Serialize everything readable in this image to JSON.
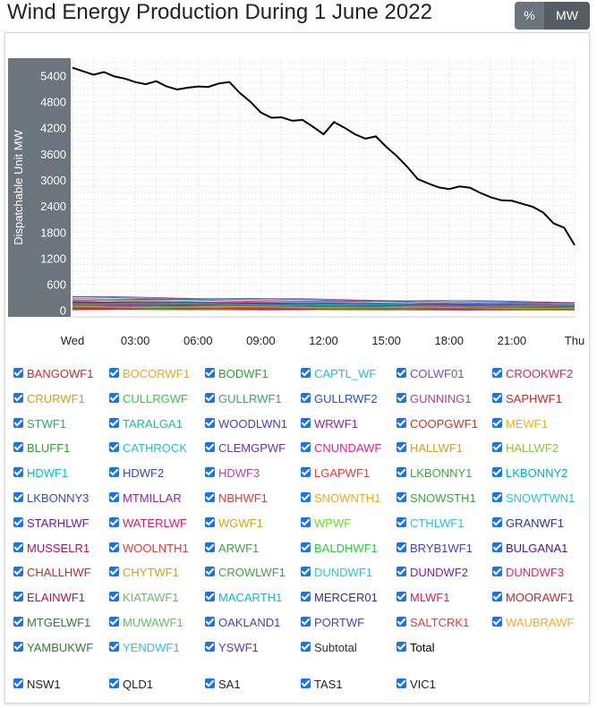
{
  "header": {
    "title": "Wind Energy Production During 1 June 2022"
  },
  "toolbar": {
    "percent_label": "%",
    "mw_label": "MW"
  },
  "colors": {
    "toggle_bg": "#6c757d",
    "checkbox": "#1a73e8",
    "total_line": "#000000"
  },
  "chart_data": {
    "type": "line",
    "title": "",
    "xlabel": "",
    "ylabel": "Dispatchable Unit MW",
    "x_ticks": [
      "Wed",
      "03:00",
      "06:00",
      "09:00",
      "12:00",
      "15:00",
      "18:00",
      "21:00",
      "Thu"
    ],
    "x_range_hours": [
      0,
      24
    ],
    "y_ticks": [
      0,
      600,
      1200,
      1800,
      2400,
      3000,
      3600,
      4200,
      4800,
      5400
    ],
    "ylim": [
      -150,
      5800
    ],
    "grid": true,
    "series": [
      {
        "name": "Total",
        "color": "#000000",
        "x": [
          0,
          0.5,
          1,
          1.5,
          2,
          2.5,
          3,
          3.5,
          4,
          4.5,
          5,
          5.5,
          6,
          6.5,
          7,
          7.5,
          8,
          8.5,
          9,
          9.5,
          10,
          10.5,
          11,
          11.5,
          12,
          12.5,
          13,
          13.5,
          14,
          14.5,
          15,
          15.5,
          16,
          16.5,
          17,
          17.5,
          18,
          18.5,
          19,
          19.5,
          20,
          20.5,
          21,
          21.5,
          22,
          22.5,
          23,
          23.5,
          24
        ],
        "values": [
          5580,
          5500,
          5420,
          5480,
          5380,
          5330,
          5250,
          5200,
          5270,
          5150,
          5080,
          5120,
          5150,
          5140,
          5220,
          5250,
          5000,
          4800,
          4550,
          4430,
          4440,
          4360,
          4380,
          4220,
          4050,
          4330,
          4200,
          4050,
          3950,
          4000,
          3760,
          3550,
          3300,
          3020,
          2920,
          2830,
          2790,
          2850,
          2820,
          2700,
          2600,
          2530,
          2520,
          2450,
          2380,
          2250,
          2000,
          1900,
          1500
        ]
      }
    ]
  },
  "legend_units": [
    "BANGOWF1",
    "BOCORWF1",
    "BODWF1",
    "CAPTL_WF",
    "COLWF01",
    "CROOKWF2",
    "CRURWF1",
    "CULLRGWF",
    "GULLRWF1",
    "GULLRWF2",
    "GUNNING1",
    "SAPHWF1",
    "STWF1",
    "TARALGA1",
    "WOODLWN1",
    "WRWF1",
    "COOPGWF1",
    "MEWF1",
    "BLUFF1",
    "CATHROCK",
    "CLEMGPWF",
    "CNUNDAWF",
    "HALLWF1",
    "HALLWF2",
    "HDWF1",
    "HDWF2",
    "HDWF3",
    "LGAPWF1",
    "LKBONNY1",
    "LKBONNY2",
    "LKBONNY3",
    "MTMILLAR",
    "NBHWF1",
    "SNOWNTH1",
    "SNOWSTH1",
    "SNOWTWN1",
    "STARHLWF",
    "WATERLWF",
    "WGWF1",
    "WPWF",
    "CTHLWF1",
    "GRANWF1",
    "MUSSELR1",
    "WOOLNTH1",
    "ARWF1",
    "BALDHWF1",
    "BRYB1WF1",
    "BULGANA1",
    "CHALLHWF",
    "CHYTWF1",
    "CROWLWF1",
    "DUNDWF1",
    "DUNDWF2",
    "DUNDWF3",
    "ELAINWF1",
    "KIATAWF1",
    "MACARTH1",
    "MERCER01",
    "MLWF1",
    "MOORAWF1",
    "MTGELWF1",
    "MUWAWF1",
    "OAKLAND1",
    "PORTWF",
    "SALTCRK1",
    "WAUBRAWF",
    "YAMBUKWF",
    "YENDWF1",
    "YSWF1",
    "Subtotal",
    "Total"
  ],
  "legend_unit_colors": [
    "#d62728",
    "#e6a817",
    "#2ca02c",
    "#17c3d6",
    "#8e44ad",
    "#e91e63",
    "#d4a017",
    "#2ecc40",
    "#27ae60",
    "#1f4fcf",
    "#c0398c",
    "#d62020",
    "#27ae60",
    "#1abc9c",
    "#4a3cc0",
    "#8e24aa",
    "#c0392b",
    "#f0b400",
    "#2e9e2e",
    "#20c0d0",
    "#5e35b1",
    "#e91e8c",
    "#d4a017",
    "#8bc34a",
    "#00bcd4",
    "#3949ab",
    "#ab47bc",
    "#e53935",
    "#43a047",
    "#00acc1",
    "#3949ab",
    "#8e24aa",
    "#e53935",
    "#f5a623",
    "#43a047",
    "#26c6da",
    "#6a1b9a",
    "#d81b60",
    "#d4a017",
    "#66dd22",
    "#26c6da",
    "#283593",
    "#ad1457",
    "#e53935",
    "#43a047",
    "#2ecc40",
    "#3949ab",
    "#4a148c",
    "#c62828",
    "#d4a017",
    "#43a047",
    "#26c6da",
    "#7b1fa2",
    "#e91e63",
    "#ad1457",
    "#66bb6a",
    "#00bcd4",
    "#283593",
    "#d81b60",
    "#c62828",
    "#2e7d32",
    "#66bb6a",
    "#3949ab",
    "#5e35b1",
    "#e53935",
    "#f9a825",
    "#2e7d32",
    "#26c6da",
    "#5e35b1",
    "#333333",
    "#000000"
  ],
  "legend_regions": [
    "NSW1",
    "QLD1",
    "SA1",
    "TAS1",
    "VIC1"
  ]
}
